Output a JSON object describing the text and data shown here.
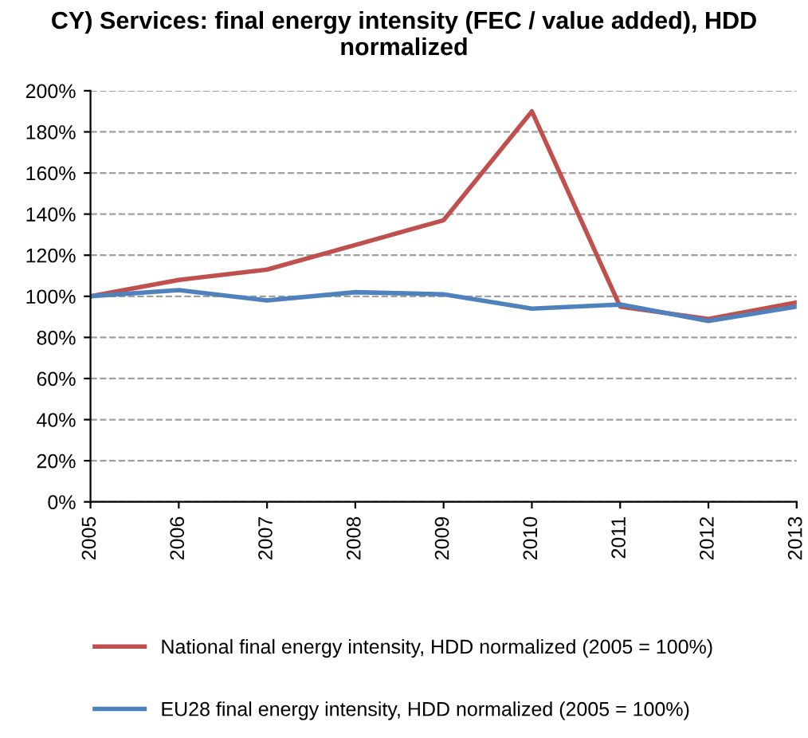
{
  "chart_data": {
    "type": "line",
    "title": "CY) Services: final energy intensity (FEC / value added), HDD normalized",
    "categories": [
      "2005",
      "2006",
      "2007",
      "2008",
      "2009",
      "2010",
      "2011",
      "2012",
      "2013"
    ],
    "series": [
      {
        "name": "National final energy intensity, HDD normalized (2005 = 100%)",
        "color": "#c0504d",
        "values": [
          100,
          108,
          113,
          125,
          137,
          190,
          95,
          89,
          97
        ]
      },
      {
        "name": "EU28 final energy intensity, HDD normalized (2005 = 100%)",
        "color": "#4f81bd",
        "values": [
          100,
          103,
          98,
          102,
          101,
          94,
          96,
          88,
          95
        ]
      }
    ],
    "ylim": [
      0,
      200
    ],
    "yticks": [
      {
        "value": 0,
        "label": "0%"
      },
      {
        "value": 20,
        "label": "20%"
      },
      {
        "value": 40,
        "label": "40%"
      },
      {
        "value": 60,
        "label": "60%"
      },
      {
        "value": 80,
        "label": "80%"
      },
      {
        "value": 100,
        "label": "100%"
      },
      {
        "value": 120,
        "label": "120%"
      },
      {
        "value": 140,
        "label": "140%"
      },
      {
        "value": 160,
        "label": "160%"
      },
      {
        "value": 180,
        "label": "180%"
      },
      {
        "value": 200,
        "label": "200%"
      }
    ],
    "grid": "y",
    "legend": "bottom",
    "marker": "none",
    "line_style": "solid"
  }
}
